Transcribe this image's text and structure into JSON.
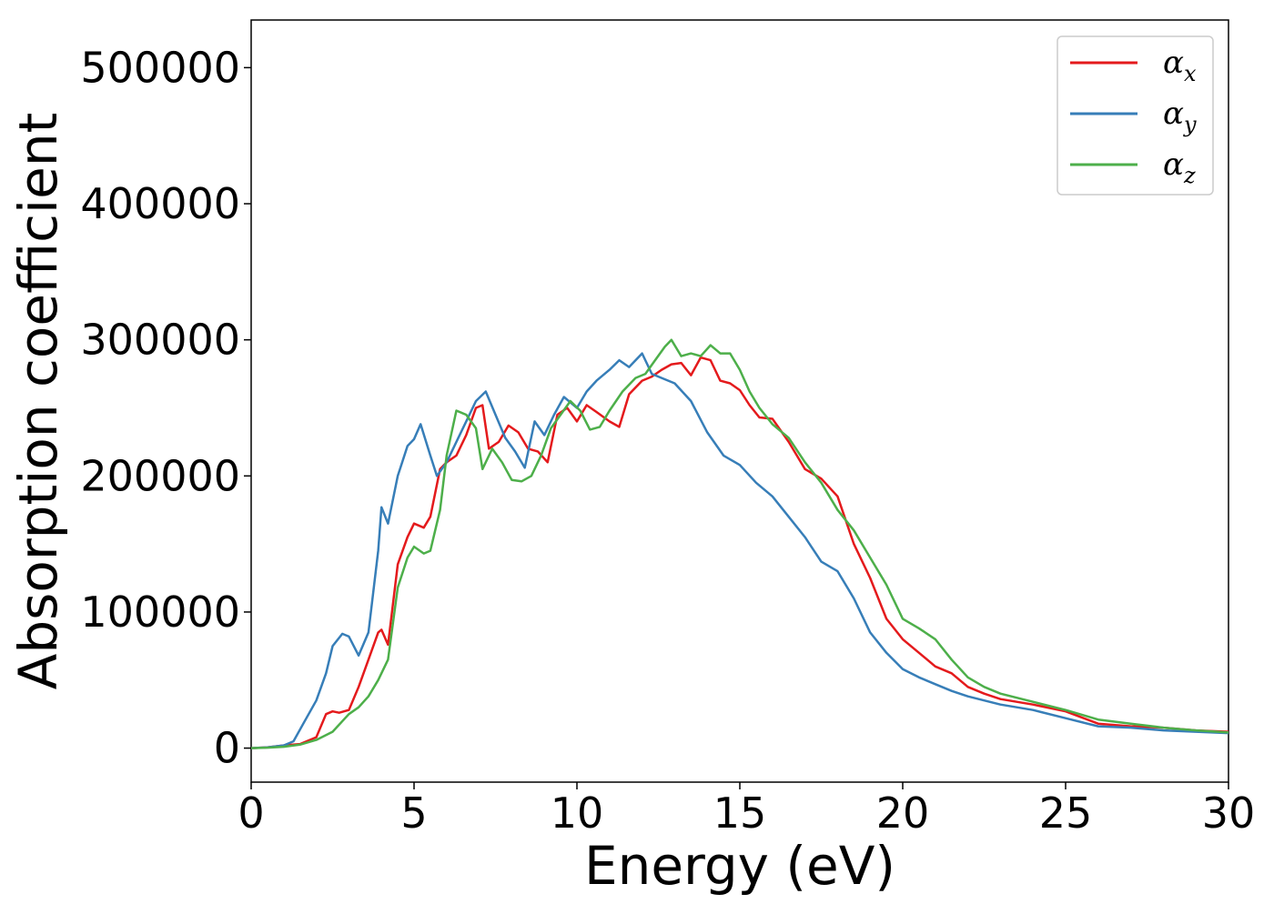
{
  "chart_data": {
    "type": "line",
    "xlabel": "Energy (eV)",
    "ylabel": "Absorption coefficient",
    "xlim": [
      0,
      30
    ],
    "ylim": [
      -25000,
      535000
    ],
    "xticks": [
      0,
      5,
      10,
      15,
      20,
      25,
      30
    ],
    "yticks": [
      0,
      100000,
      200000,
      300000,
      400000,
      500000
    ],
    "grid": false,
    "legend": "top-right",
    "series": [
      {
        "name": "α",
        "subscript": "x",
        "color": "#e41a1c",
        "x": [
          0,
          0.5,
          1.0,
          1.5,
          2.0,
          2.3,
          2.5,
          2.7,
          3.0,
          3.3,
          3.6,
          3.9,
          4.0,
          4.2,
          4.5,
          4.8,
          5.0,
          5.3,
          5.5,
          5.8,
          6.0,
          6.3,
          6.6,
          6.9,
          7.1,
          7.3,
          7.6,
          7.9,
          8.2,
          8.5,
          8.8,
          9.1,
          9.4,
          9.7,
          10.0,
          10.3,
          10.6,
          11.0,
          11.3,
          11.6,
          12.0,
          12.3,
          12.6,
          12.9,
          13.2,
          13.5,
          13.8,
          14.1,
          14.4,
          14.7,
          15.0,
          15.3,
          15.6,
          16.0,
          16.5,
          17.0,
          17.5,
          18.0,
          18.5,
          19.0,
          19.5,
          20.0,
          20.5,
          21.0,
          21.5,
          22.0,
          22.5,
          23.0,
          24.0,
          25.0,
          26.0,
          27.0,
          28.0,
          29.0,
          30.0
        ],
        "y": [
          0,
          500,
          2000,
          3000,
          8000,
          25000,
          27000,
          26000,
          28000,
          45000,
          65000,
          85000,
          87000,
          76000,
          135000,
          155000,
          165000,
          162000,
          170000,
          205000,
          210000,
          215000,
          230000,
          250000,
          252000,
          220000,
          225000,
          237000,
          232000,
          220000,
          218000,
          210000,
          245000,
          250000,
          240000,
          252000,
          247000,
          240000,
          236000,
          260000,
          270000,
          273000,
          278000,
          282000,
          283000,
          274000,
          287000,
          285000,
          270000,
          268000,
          263000,
          252000,
          243000,
          242000,
          225000,
          205000,
          198000,
          185000,
          150000,
          125000,
          95000,
          80000,
          70000,
          60000,
          55000,
          45000,
          40000,
          36000,
          32000,
          27000,
          18000,
          16000,
          15000,
          13000,
          12000
        ]
      },
      {
        "name": "α",
        "subscript": "y",
        "color": "#377eb8",
        "x": [
          0,
          0.5,
          1.0,
          1.3,
          1.6,
          2.0,
          2.3,
          2.5,
          2.8,
          3.0,
          3.3,
          3.6,
          3.9,
          4.0,
          4.2,
          4.5,
          4.8,
          5.0,
          5.2,
          5.5,
          5.7,
          6.0,
          6.3,
          6.6,
          6.9,
          7.2,
          7.5,
          7.8,
          8.1,
          8.4,
          8.7,
          9.0,
          9.3,
          9.6,
          10.0,
          10.3,
          10.6,
          11.0,
          11.3,
          11.6,
          12.0,
          12.3,
          12.6,
          13.0,
          13.5,
          14.0,
          14.5,
          15.0,
          15.5,
          16.0,
          16.5,
          17.0,
          17.5,
          18.0,
          18.5,
          19.0,
          19.5,
          20.0,
          20.5,
          21.0,
          21.5,
          22.0,
          22.5,
          23.0,
          24.0,
          25.0,
          26.0,
          27.0,
          28.0,
          29.0,
          30.0
        ],
        "y": [
          0,
          500,
          2000,
          5000,
          18000,
          35000,
          55000,
          75000,
          84000,
          82000,
          68000,
          85000,
          145000,
          177000,
          165000,
          200000,
          222000,
          227000,
          238000,
          215000,
          200000,
          210000,
          225000,
          240000,
          255000,
          262000,
          245000,
          228000,
          218000,
          206000,
          240000,
          230000,
          245000,
          258000,
          250000,
          262000,
          270000,
          278000,
          285000,
          280000,
          290000,
          275000,
          272000,
          268000,
          255000,
          232000,
          215000,
          208000,
          195000,
          185000,
          170000,
          155000,
          137000,
          130000,
          110000,
          85000,
          70000,
          58000,
          52000,
          47000,
          42000,
          38000,
          35000,
          32000,
          28000,
          22000,
          16000,
          15000,
          13000,
          12000,
          11000
        ]
      },
      {
        "name": "α",
        "subscript": "z",
        "color": "#4daf4a",
        "x": [
          0,
          0.5,
          1.0,
          1.5,
          2.0,
          2.5,
          3.0,
          3.3,
          3.6,
          3.9,
          4.2,
          4.5,
          4.8,
          5.0,
          5.3,
          5.5,
          5.8,
          6.0,
          6.3,
          6.6,
          6.9,
          7.1,
          7.4,
          7.7,
          8.0,
          8.3,
          8.6,
          8.9,
          9.2,
          9.5,
          9.8,
          10.1,
          10.4,
          10.7,
          11.0,
          11.4,
          11.8,
          12.1,
          12.4,
          12.7,
          12.9,
          13.2,
          13.5,
          13.8,
          14.1,
          14.4,
          14.7,
          15.0,
          15.3,
          15.6,
          16.0,
          16.5,
          17.0,
          17.5,
          18.0,
          18.5,
          19.0,
          19.5,
          20.0,
          20.5,
          21.0,
          21.5,
          22.0,
          22.5,
          23.0,
          24.0,
          25.0,
          26.0,
          27.0,
          28.0,
          29.0,
          30.0
        ],
        "y": [
          0,
          300,
          1000,
          2500,
          6000,
          12000,
          25000,
          30000,
          38000,
          50000,
          65000,
          118000,
          140000,
          148000,
          143000,
          145000,
          175000,
          215000,
          248000,
          245000,
          235000,
          205000,
          220000,
          210000,
          197000,
          196000,
          200000,
          215000,
          235000,
          245000,
          255000,
          248000,
          234000,
          236000,
          248000,
          262000,
          272000,
          275000,
          285000,
          295000,
          300000,
          288000,
          290000,
          288000,
          296000,
          290000,
          290000,
          278000,
          262000,
          250000,
          238000,
          228000,
          210000,
          195000,
          175000,
          160000,
          140000,
          120000,
          95000,
          88000,
          80000,
          65000,
          52000,
          45000,
          40000,
          34000,
          28000,
          21000,
          18000,
          15000,
          13000,
          11500
        ]
      }
    ]
  }
}
